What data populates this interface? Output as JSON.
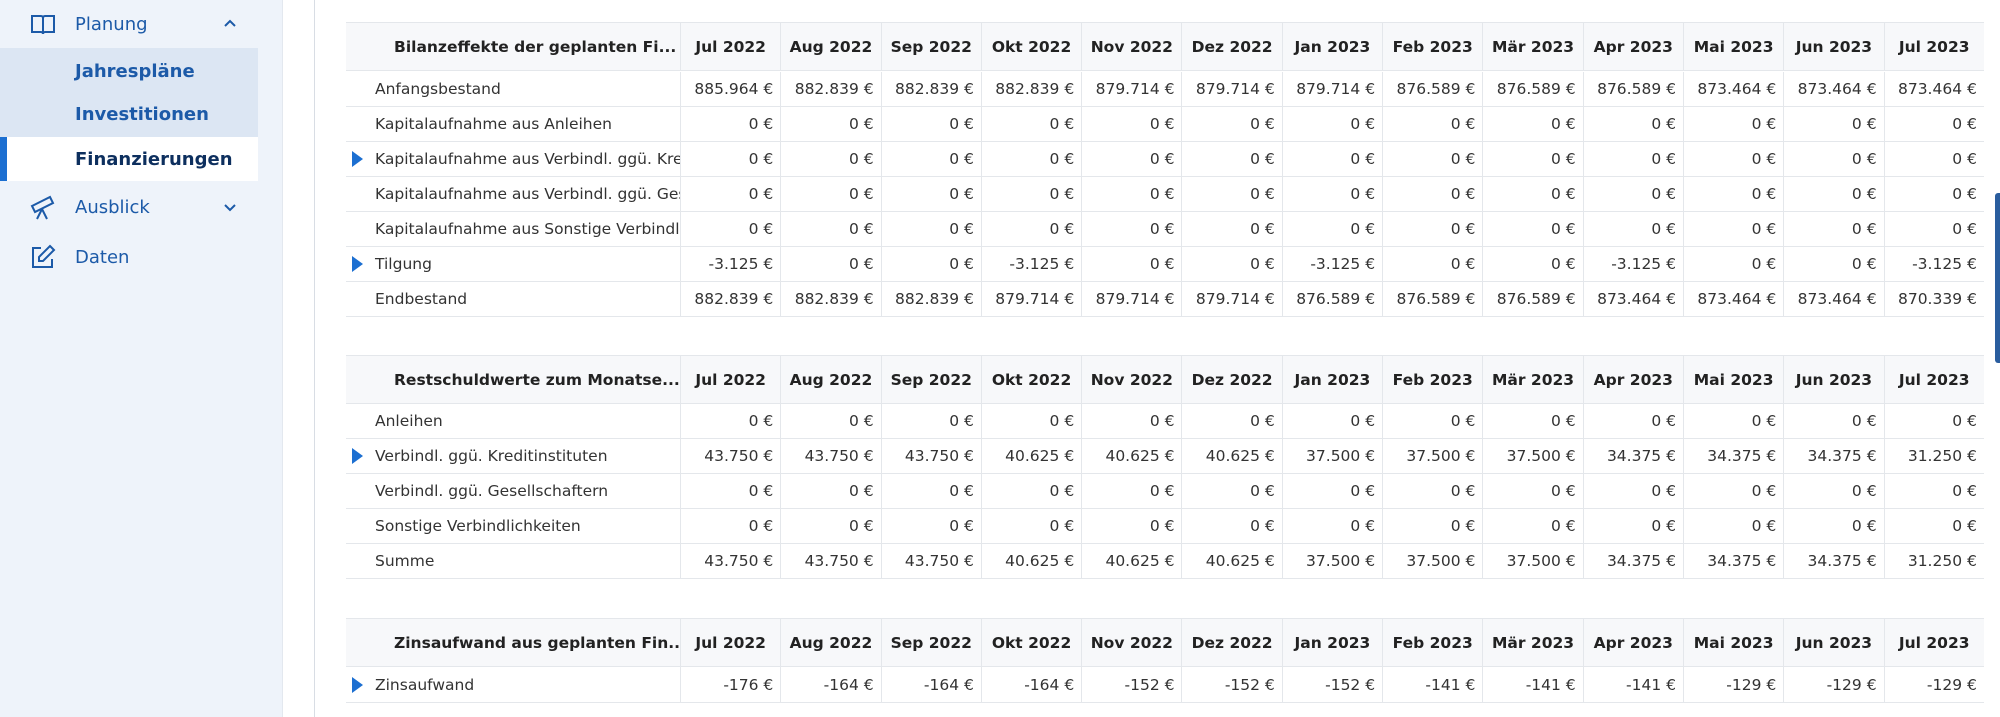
{
  "sidebar": {
    "planung_label": "Planung",
    "items": [
      {
        "label": "Jahrespläne"
      },
      {
        "label": "Investitionen"
      },
      {
        "label": "Finanzierungen"
      }
    ],
    "ausblick_label": "Ausblick",
    "daten_label": "Daten"
  },
  "months": [
    "Jul 2022",
    "Aug 2022",
    "Sep 2022",
    "Okt 2022",
    "Nov 2022",
    "Dez 2022",
    "Jan 2023",
    "Feb 2023",
    "Mär 2023",
    "Apr 2023",
    "Mai 2023",
    "Jun 2023",
    "Jul 2023"
  ],
  "tables": [
    {
      "title": "Bilanzeffekte der geplanten Fi...",
      "rows": [
        {
          "label": "Anfangsbestand",
          "values": [
            "885.964 €",
            "882.839 €",
            "882.839 €",
            "882.839 €",
            "879.714 €",
            "879.714 €",
            "879.714 €",
            "876.589 €",
            "876.589 €",
            "876.589 €",
            "873.464 €",
            "873.464 €",
            "873.464 €"
          ]
        },
        {
          "label": "Kapitalaufnahme aus Anleihen",
          "values": [
            "0 €",
            "0 €",
            "0 €",
            "0 €",
            "0 €",
            "0 €",
            "0 €",
            "0 €",
            "0 €",
            "0 €",
            "0 €",
            "0 €",
            "0 €"
          ]
        },
        {
          "label": "Kapitalaufnahme aus Verbindl. ggü. Kredit...",
          "values": [
            "0 €",
            "0 €",
            "0 €",
            "0 €",
            "0 €",
            "0 €",
            "0 €",
            "0 €",
            "0 €",
            "0 €",
            "0 €",
            "0 €",
            "0 €"
          ]
        },
        {
          "label": "Kapitalaufnahme aus Verbindl. ggü. Ges...",
          "values": [
            "0 €",
            "0 €",
            "0 €",
            "0 €",
            "0 €",
            "0 €",
            "0 €",
            "0 €",
            "0 €",
            "0 €",
            "0 €",
            "0 €",
            "0 €"
          ]
        },
        {
          "label": "Kapitalaufnahme aus Sonstige Verbindli...",
          "values": [
            "0 €",
            "0 €",
            "0 €",
            "0 €",
            "0 €",
            "0 €",
            "0 €",
            "0 €",
            "0 €",
            "0 €",
            "0 €",
            "0 €",
            "0 €"
          ]
        },
        {
          "label": "Tilgung",
          "values": [
            "-3.125 €",
            "0 €",
            "0 €",
            "-3.125 €",
            "0 €",
            "0 €",
            "-3.125 €",
            "0 €",
            "0 €",
            "-3.125 €",
            "0 €",
            "0 €",
            "-3.125 €"
          ]
        },
        {
          "label": "Endbestand",
          "values": [
            "882.839 €",
            "882.839 €",
            "882.839 €",
            "879.714 €",
            "879.714 €",
            "879.714 €",
            "876.589 €",
            "876.589 €",
            "876.589 €",
            "873.464 €",
            "873.464 €",
            "873.464 €",
            "870.339 €"
          ]
        }
      ]
    },
    {
      "title": "Restschuldwerte zum Monatse...",
      "rows": [
        {
          "label": "Anleihen",
          "values": [
            "0 €",
            "0 €",
            "0 €",
            "0 €",
            "0 €",
            "0 €",
            "0 €",
            "0 €",
            "0 €",
            "0 €",
            "0 €",
            "0 €",
            "0 €"
          ]
        },
        {
          "label": "Verbindl. ggü. Kreditinstituten",
          "values": [
            "43.750 €",
            "43.750 €",
            "43.750 €",
            "40.625 €",
            "40.625 €",
            "40.625 €",
            "37.500 €",
            "37.500 €",
            "37.500 €",
            "34.375 €",
            "34.375 €",
            "34.375 €",
            "31.250 €"
          ]
        },
        {
          "label": "Verbindl. ggü. Gesellschaftern",
          "values": [
            "0 €",
            "0 €",
            "0 €",
            "0 €",
            "0 €",
            "0 €",
            "0 €",
            "0 €",
            "0 €",
            "0 €",
            "0 €",
            "0 €",
            "0 €"
          ]
        },
        {
          "label": "Sonstige Verbindlichkeiten",
          "values": [
            "0 €",
            "0 €",
            "0 €",
            "0 €",
            "0 €",
            "0 €",
            "0 €",
            "0 €",
            "0 €",
            "0 €",
            "0 €",
            "0 €",
            "0 €"
          ]
        },
        {
          "label": "Summe",
          "values": [
            "43.750 €",
            "43.750 €",
            "43.750 €",
            "40.625 €",
            "40.625 €",
            "40.625 €",
            "37.500 €",
            "37.500 €",
            "37.500 €",
            "34.375 €",
            "34.375 €",
            "34.375 €",
            "31.250 €"
          ]
        }
      ]
    },
    {
      "title": "Zinsaufwand aus geplanten Fin...",
      "rows": [
        {
          "label": "Zinsaufwand",
          "values": [
            "-176 €",
            "-164 €",
            "-164 €",
            "-164 €",
            "-152 €",
            "-152 €",
            "-152 €",
            "-141 €",
            "-141 €",
            "-141 €",
            "-129 €",
            "-129 €",
            "-129 €"
          ]
        }
      ]
    }
  ]
}
